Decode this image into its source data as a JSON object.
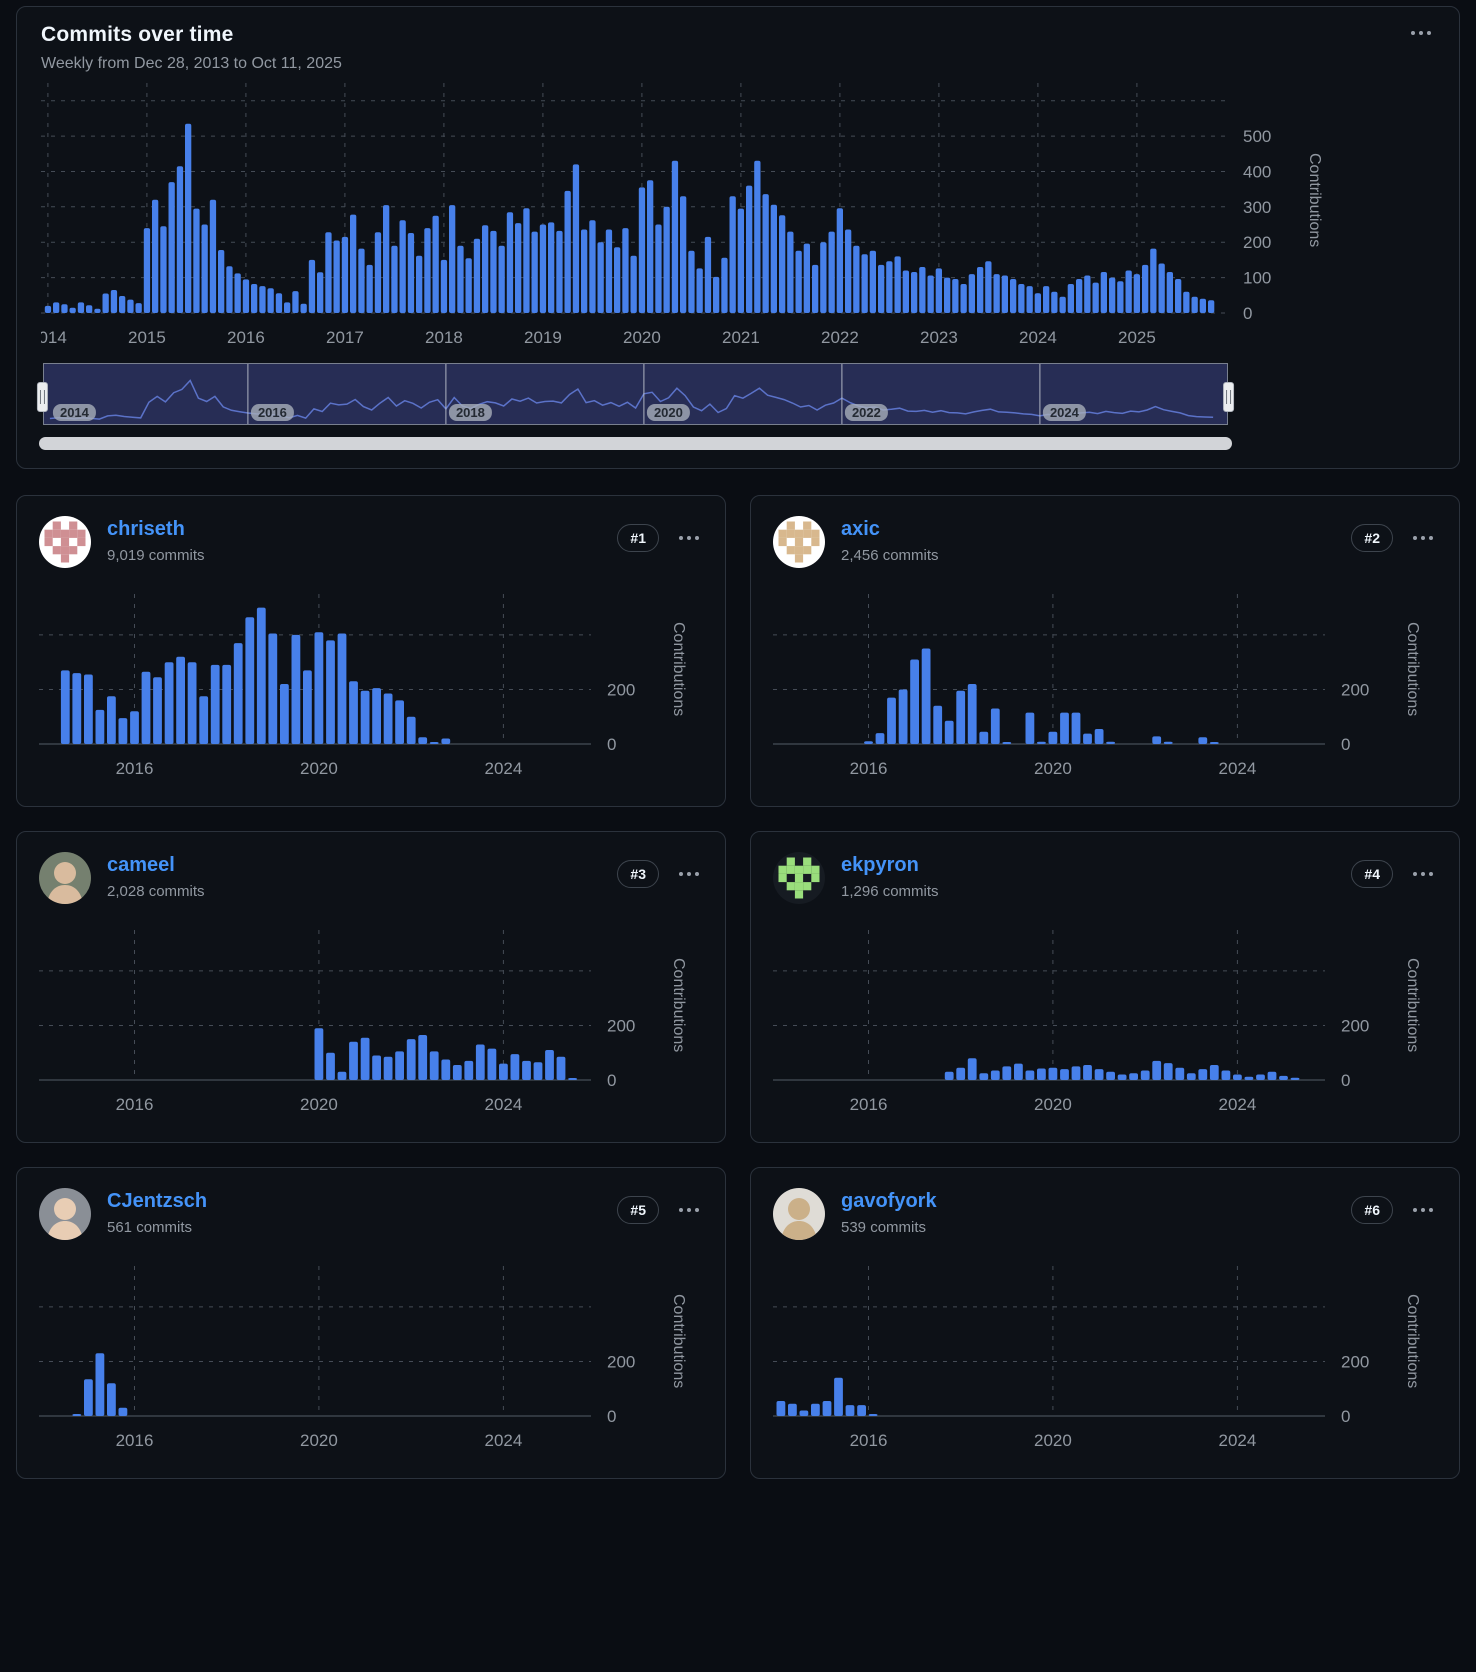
{
  "panel": {
    "title": "Commits over time",
    "subtitle": "Weekly from Dec 28, 2013 to Oct 11, 2025",
    "ylabel": "Contributions"
  },
  "colors": {
    "bar": "#4780ea",
    "link": "#4493f8",
    "muted": "#9198a1",
    "title_text": "#f0f6fc",
    "grid": "#454c56",
    "axis_line": "#3d444d",
    "card_border": "#2b323c",
    "background": "#0a0d13",
    "minimap_fill": "#272d55",
    "minimap_line": "#5b72c8",
    "minimap_separator": "#c8cdd6",
    "scrollbar": "#d2d4d8",
    "handle": "#eceef0",
    "label_pill": "#a8aeb9",
    "label_pill_text": "#242a33"
  },
  "chart_data": {
    "main": {
      "type": "bar",
      "title": "Commits over time",
      "subtitle": "Weekly from Dec 28, 2013 to Oct 11, 2025",
      "ylabel": "Contributions",
      "ylim": [
        0,
        650
      ],
      "y_tick_labels": [
        {
          "v": 0,
          "label": "0"
        },
        {
          "v": 100,
          "label": "100"
        },
        {
          "v": 200,
          "label": "200"
        },
        {
          "v": 300,
          "label": "300"
        },
        {
          "v": 400,
          "label": "400"
        },
        {
          "v": 500,
          "label": "500"
        }
      ],
      "h_gridlines": [
        0,
        100,
        200,
        300,
        400,
        500,
        600
      ],
      "x_tick_labels": [
        "2014",
        "2015",
        "2016",
        "2017",
        "2018",
        "2019",
        "2020",
        "2021",
        "2022",
        "2023",
        "2024",
        "2025"
      ],
      "x_tick_years": [
        2014,
        2015,
        2016,
        2017,
        2018,
        2019,
        2020,
        2021,
        2022,
        2023,
        2024,
        2025
      ],
      "x_range": [
        2013.93,
        2025.9
      ],
      "series_start": 2014.0,
      "series_interval": 0.08333,
      "values": [
        20,
        30,
        25,
        15,
        30,
        22,
        12,
        55,
        65,
        48,
        38,
        28,
        240,
        320,
        245,
        370,
        415,
        535,
        295,
        250,
        320,
        178,
        132,
        112,
        95,
        82,
        76,
        70,
        56,
        30,
        62,
        26,
        150,
        115,
        228,
        205,
        215,
        278,
        182,
        136,
        228,
        305,
        190,
        262,
        226,
        162,
        240,
        275,
        150,
        305,
        190,
        155,
        210,
        248,
        232,
        190,
        285,
        254,
        296,
        230,
        250,
        256,
        232,
        345,
        420,
        236,
        262,
        200,
        236,
        186,
        240,
        162,
        355,
        375,
        250,
        300,
        430,
        330,
        176,
        126,
        215,
        102,
        156,
        330,
        295,
        360,
        430,
        336,
        306,
        276,
        230,
        176,
        196,
        136,
        200,
        230,
        296,
        236,
        190,
        166,
        176,
        136,
        146,
        160,
        120,
        116,
        130,
        106,
        126,
        100,
        96,
        82,
        110,
        130,
        146,
        110,
        106,
        96,
        82,
        76,
        56,
        76,
        60,
        46,
        82,
        96,
        106,
        86,
        116,
        100,
        90,
        120,
        110,
        136,
        182,
        140,
        116,
        96,
        60,
        46,
        40,
        36
      ]
    },
    "minimap": {
      "type": "line",
      "label_years": [
        2014,
        2016,
        2018,
        2020,
        2022,
        2024
      ],
      "labels": [
        "2014",
        "2016",
        "2018",
        "2020",
        "2022",
        "2024"
      ],
      "separator_years": [
        2016,
        2018,
        2020,
        2022,
        2024
      ],
      "selection": "full-range"
    },
    "card_axis": {
      "ylim": [
        0,
        550
      ],
      "h_gridlines": [
        200,
        400
      ],
      "y_tick_labels": [
        {
          "v": 200,
          "label": "200"
        },
        {
          "v": 0,
          "label": "0"
        }
      ],
      "x_tick_labels": [
        "2016",
        "2020",
        "2024"
      ],
      "x_tick_years": [
        2016,
        2020,
        2024
      ],
      "x_range": [
        2013.93,
        2025.9
      ],
      "ylabel": "Contributions"
    }
  },
  "contributors": [
    {
      "name": "chriseth",
      "commits": "9,019 commits",
      "rank": "#1",
      "avatar": {
        "kind": "identicon",
        "bg": "#ffffff",
        "fg": "#cf8f93"
      },
      "chart": {
        "type": "bar",
        "start": 2014.5,
        "interval": 0.25,
        "values": [
          270,
          260,
          255,
          125,
          175,
          95,
          120,
          265,
          245,
          300,
          320,
          300,
          175,
          290,
          290,
          370,
          465,
          500,
          405,
          220,
          400,
          270,
          410,
          380,
          405,
          230,
          195,
          205,
          185,
          160,
          100,
          25,
          5,
          20
        ]
      }
    },
    {
      "name": "axic",
      "commits": "2,456 commits",
      "rank": "#2",
      "avatar": {
        "kind": "identicon",
        "bg": "#ffffff",
        "fg": "#d8b88e"
      },
      "chart": {
        "type": "bar",
        "start": 2016.0,
        "interval": 0.25,
        "values": [
          10,
          40,
          170,
          200,
          310,
          350,
          140,
          85,
          195,
          220,
          45,
          130,
          5,
          0,
          115,
          8,
          45,
          115,
          115,
          38,
          55,
          8,
          0,
          0,
          0,
          28,
          8,
          0,
          0,
          25,
          6
        ]
      }
    },
    {
      "name": "cameel",
      "commits": "2,028 commits",
      "rank": "#3",
      "avatar": {
        "kind": "photo",
        "bg": "#75806f",
        "fg": "#d9bb9e"
      },
      "chart": {
        "type": "bar",
        "start": 2020.0,
        "interval": 0.25,
        "values": [
          190,
          100,
          30,
          140,
          155,
          90,
          85,
          105,
          150,
          165,
          105,
          75,
          55,
          70,
          130,
          115,
          60,
          95,
          70,
          65,
          110,
          85,
          5
        ]
      }
    },
    {
      "name": "ekpyron",
      "commits": "1,296 commits",
      "rank": "#4",
      "avatar": {
        "kind": "identicon",
        "bg": "#161b22",
        "fg": "#9ade7c"
      },
      "chart": {
        "type": "bar",
        "start": 2017.75,
        "interval": 0.25,
        "values": [
          30,
          45,
          80,
          25,
          35,
          50,
          60,
          35,
          42,
          45,
          40,
          50,
          55,
          40,
          30,
          20,
          25,
          35,
          70,
          62,
          45,
          25,
          40,
          55,
          35,
          20,
          12,
          20,
          30,
          15,
          8
        ]
      }
    },
    {
      "name": "CJentzsch",
      "commits": "561 commits",
      "rank": "#5",
      "avatar": {
        "kind": "photo",
        "bg": "#8a8f96",
        "fg": "#e8cdb4"
      },
      "chart": {
        "type": "bar",
        "start": 2014.75,
        "interval": 0.25,
        "values": [
          5,
          135,
          230,
          120,
          30
        ]
      }
    },
    {
      "name": "gavofyork",
      "commits": "539 commits",
      "rank": "#6",
      "avatar": {
        "kind": "photo",
        "bg": "#dfdcd6",
        "fg": "#cbb089"
      },
      "chart": {
        "type": "bar",
        "start": 2014.1,
        "interval": 0.25,
        "values": [
          55,
          45,
          20,
          45,
          55,
          140,
          40,
          40,
          6
        ]
      }
    }
  ]
}
